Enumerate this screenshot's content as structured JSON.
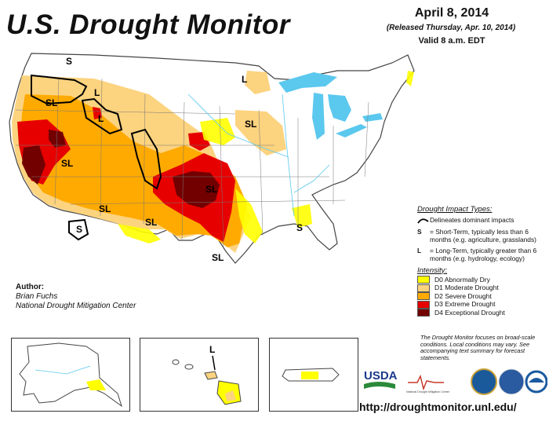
{
  "header": {
    "title": "U.S. Drought Monitor",
    "date": "April 8, 2014",
    "released": "(Released Thursday, Apr. 10, 2014)",
    "valid": "Valid 8 a.m. EDT"
  },
  "map_labels": {
    "s": "S",
    "sl": "SL",
    "l": "L"
  },
  "impact_legend": {
    "header": "Drought Impact Types:",
    "delineates": "Delineates dominant impacts",
    "short_symbol": "S",
    "short_text": "= Short-Term, typically less than 6 months (e.g. agriculture, grasslands)",
    "long_symbol": "L",
    "long_text": "= Long-Term, typically greater than 6 months (e.g. hydrology, ecology)"
  },
  "intensity_legend": {
    "header": "Intensity:",
    "categories": [
      {
        "label": "D0 Abnormally Dry",
        "color": "#ffff00"
      },
      {
        "label": "D1 Moderate Drought",
        "color": "#fcd37f"
      },
      {
        "label": "D2 Severe Drought",
        "color": "#ffaa00"
      },
      {
        "label": "D3 Extreme Drought",
        "color": "#e60000"
      },
      {
        "label": "D4 Exceptional Drought",
        "color": "#730000"
      }
    ]
  },
  "note": "The Drought Monitor focuses on broad-scale conditions. Local conditions may vary. See accompanying text summary for forecast statements.",
  "author": {
    "label": "Author:",
    "name": "Brian Fuchs",
    "org": "National Drought Mitigation Center"
  },
  "logos": {
    "usda": "USDA",
    "ndmc": "National Drought Mitigation Center"
  },
  "url": "http://droughtmonitor.unl.edu/",
  "colors": {
    "water": "#5bc8ee",
    "d0": "#ffff00",
    "d1": "#fcd37f",
    "d2": "#ffaa00",
    "d3": "#e60000",
    "d4": "#730000"
  }
}
